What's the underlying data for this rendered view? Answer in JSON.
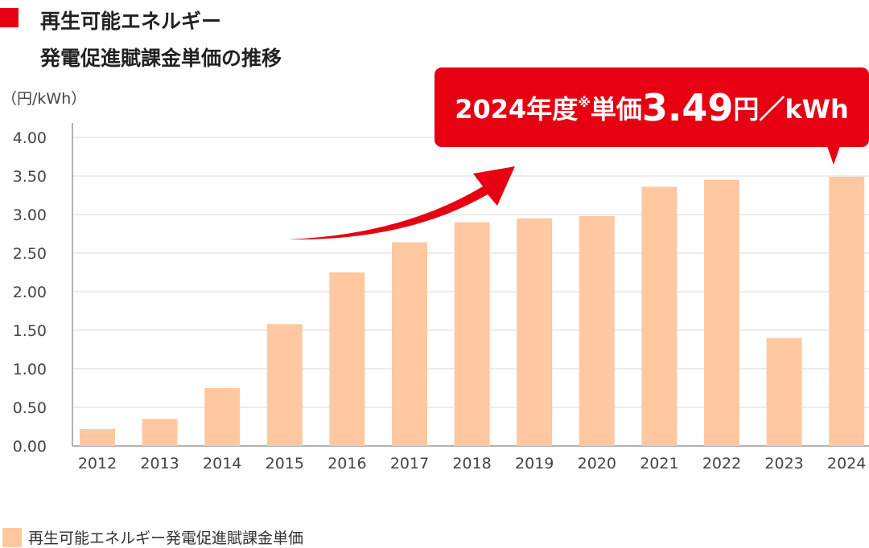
{
  "title_lines": [
    "再生可能エネルギー",
    "発電促進賦課金単価の推移"
  ],
  "colors": {
    "accent": "#e60012",
    "bar": "#ffc8a0"
  },
  "callout": {
    "year": "2024年度",
    "note_mark": "※",
    "label": "単価",
    "value": "3.49",
    "unit": "円／kWh"
  },
  "chart_data": {
    "type": "bar",
    "ylabel": "（円/kWh）",
    "categories": [
      "2012",
      "2013",
      "2014",
      "2015",
      "2016",
      "2017",
      "2018",
      "2019",
      "2020",
      "2021",
      "2022",
      "2023",
      "2024"
    ],
    "values": [
      0.22,
      0.35,
      0.75,
      1.58,
      2.25,
      2.64,
      2.9,
      2.95,
      2.98,
      3.36,
      3.45,
      1.4,
      3.49
    ],
    "ylim": [
      0,
      4.0
    ],
    "yticks": [
      "0.00",
      "0.50",
      "1.00",
      "1.50",
      "2.00",
      "2.50",
      "3.00",
      "3.50",
      "4.00"
    ],
    "grid": true,
    "legend": {
      "position": "bottom-left",
      "entries": [
        "再生可能エネルギー発電促進賦課金単価"
      ]
    }
  }
}
